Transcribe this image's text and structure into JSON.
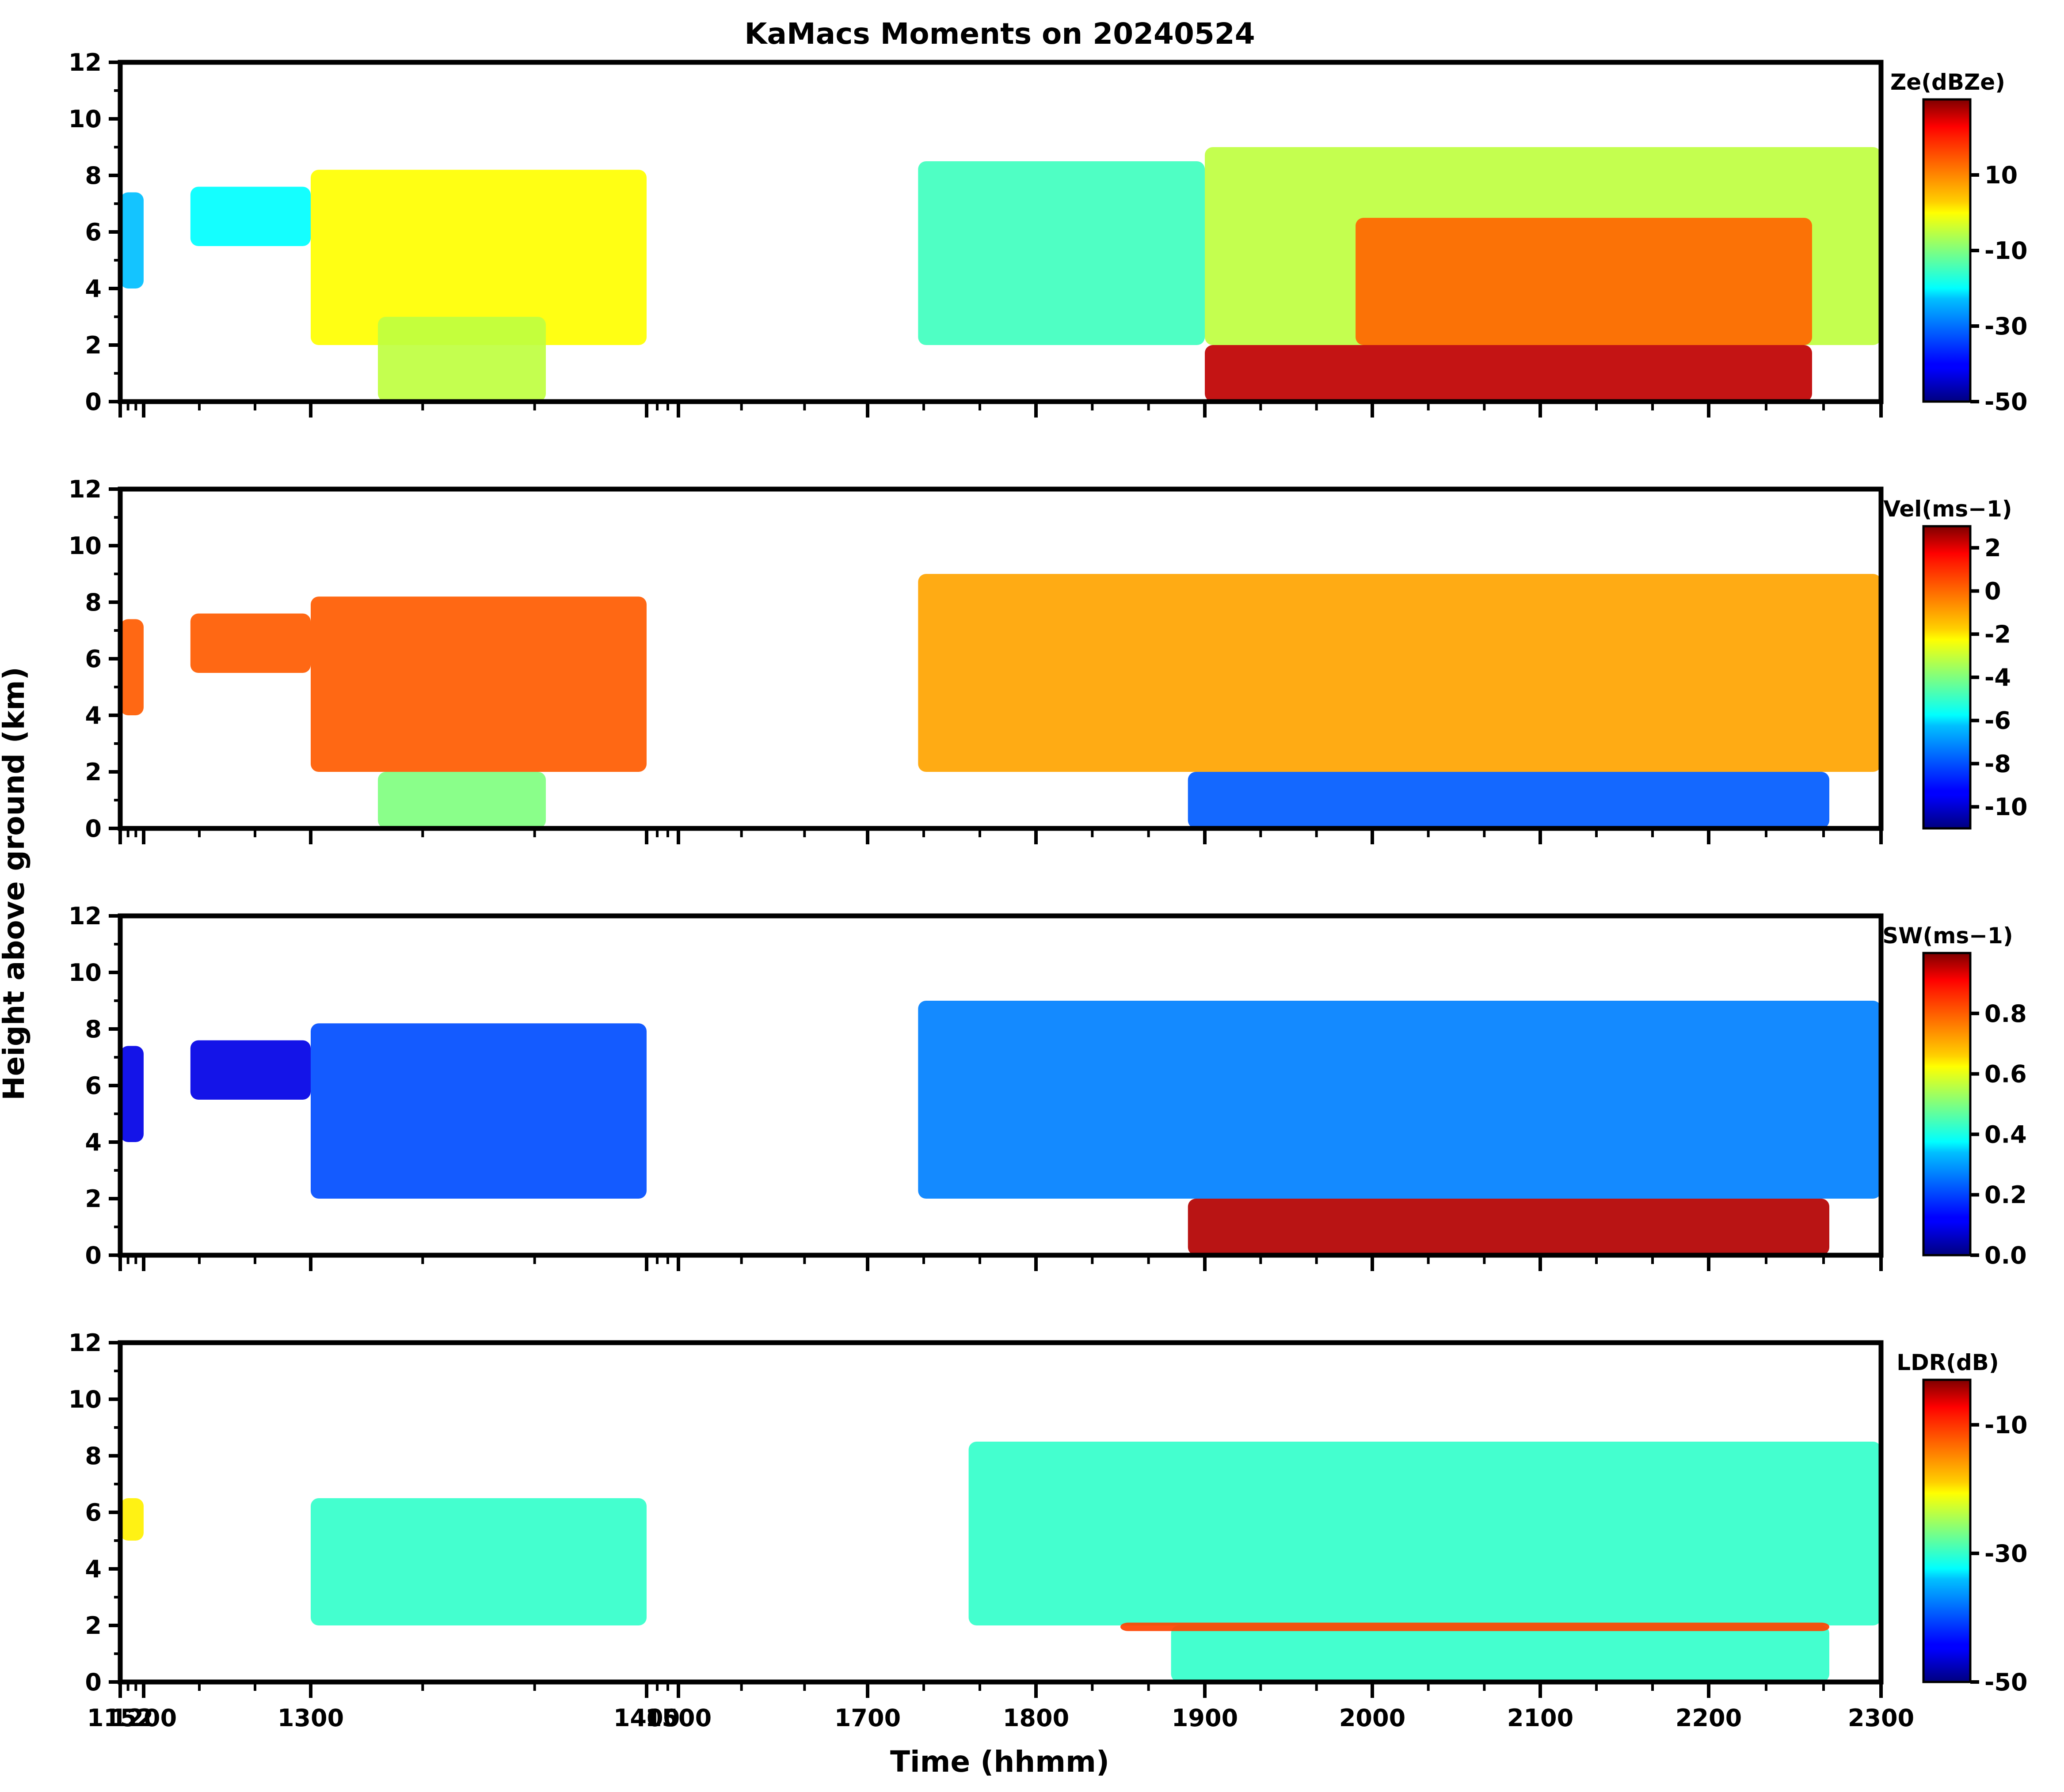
{
  "chart_data": {
    "type": "heatmap",
    "title": "KaMacs Moments on 20240524",
    "xlabel": "Time (hhmm)",
    "ylabel": "Height above ground (km)",
    "x_ticks": [
      "1152",
      "1200",
      "1300",
      "1400",
      "1500",
      "1700",
      "1800",
      "1900",
      "2000",
      "2100",
      "2200",
      "2300"
    ],
    "x_tick_positions_hhmm": [
      1152,
      1200,
      1300,
      1400,
      1500,
      1700,
      1800,
      1900,
      2000,
      2100,
      2200,
      2300
    ],
    "y_ticks": [
      "0",
      "2",
      "4",
      "6",
      "8",
      "10",
      "12"
    ],
    "ylim": [
      0,
      12
    ],
    "panels": [
      {
        "variable": "Ze",
        "colorbar_label": "Z<sub>e</sub>(dBZ<sub>e</sub>)",
        "colorbar_label_text": "Ze(dBZe)",
        "colorbar_ticks": [
          "-50",
          "-30",
          "-10",
          "10"
        ],
        "colorbar_tick_values": [
          -50,
          -30,
          -10,
          10
        ],
        "vmin": -50,
        "vmax": 30,
        "colormap": "jet",
        "echoes": [
          {
            "t0": 1152,
            "t1": 1200,
            "z0": 4.0,
            "z1": 7.4,
            "value": -25
          },
          {
            "t0": 1228,
            "t1": 1300,
            "z0": 5.5,
            "z1": 7.6,
            "value": -20
          },
          {
            "t0": 1300,
            "t1": 1400,
            "z0": 2.0,
            "z1": 8.2,
            "value": 0
          },
          {
            "t0": 1320,
            "t1": 1370,
            "z0": 0.0,
            "z1": 3.0,
            "value": -5
          },
          {
            "t0": 1730,
            "t1": 1900,
            "z0": 2.0,
            "z1": 8.5,
            "value": -15
          },
          {
            "t0": 1900,
            "t1": 2300,
            "z0": 2.0,
            "z1": 9.0,
            "value": -5
          },
          {
            "t0": 1990,
            "t1": 2260,
            "z0": 2.0,
            "z1": 6.5,
            "value": 12
          },
          {
            "t0": 1900,
            "t1": 2260,
            "z0": 0.0,
            "z1": 2.0,
            "value": 25
          }
        ]
      },
      {
        "variable": "Vel",
        "colorbar_label": "Vel(ms<sup>−1</sup>)",
        "colorbar_label_text": "Vel(ms−1)",
        "colorbar_ticks": [
          "-10",
          "-8",
          "-6",
          "-4",
          "-2",
          "0",
          "2"
        ],
        "colorbar_tick_values": [
          -10,
          -8,
          -6,
          -4,
          -2,
          0,
          2
        ],
        "vmin": -11,
        "vmax": 3,
        "colormap": "jet",
        "echoes": [
          {
            "t0": 1152,
            "t1": 1200,
            "z0": 4.0,
            "z1": 7.4,
            "value": 0
          },
          {
            "t0": 1228,
            "t1": 1300,
            "z0": 5.5,
            "z1": 7.6,
            "value": 0
          },
          {
            "t0": 1300,
            "t1": 1400,
            "z0": 2.0,
            "z1": 8.2,
            "value": 0
          },
          {
            "t0": 1320,
            "t1": 1370,
            "z0": 0.0,
            "z1": 2.0,
            "value": -4
          },
          {
            "t0": 1730,
            "t1": 2300,
            "z0": 2.0,
            "z1": 9.0,
            "value": -1
          },
          {
            "t0": 1890,
            "t1": 2270,
            "z0": 0.0,
            "z1": 2.0,
            "value": -8
          }
        ]
      },
      {
        "variable": "SW",
        "colorbar_label": "SW(ms<sup>−1</sup>)",
        "colorbar_label_text": "SW(ms−1)",
        "colorbar_ticks": [
          "0.0",
          "0.2",
          "0.4",
          "0.6",
          "0.8"
        ],
        "colorbar_tick_values": [
          0.0,
          0.2,
          0.4,
          0.6,
          0.8
        ],
        "vmin": 0.0,
        "vmax": 1.0,
        "colormap": "jet",
        "echoes": [
          {
            "t0": 1152,
            "t1": 1200,
            "z0": 4.0,
            "z1": 7.4,
            "value": 0.1
          },
          {
            "t0": 1228,
            "t1": 1300,
            "z0": 5.5,
            "z1": 7.6,
            "value": 0.1
          },
          {
            "t0": 1300,
            "t1": 1400,
            "z0": 2.0,
            "z1": 8.2,
            "value": 0.2
          },
          {
            "t0": 1730,
            "t1": 2300,
            "z0": 2.0,
            "z1": 9.0,
            "value": 0.25
          },
          {
            "t0": 1890,
            "t1": 2270,
            "z0": 0.0,
            "z1": 2.0,
            "value": 0.95
          }
        ]
      },
      {
        "variable": "LDR",
        "colorbar_label": "LDR(dB)",
        "colorbar_label_text": "LDR(dB)",
        "colorbar_ticks": [
          "-50",
          "-30",
          "-10"
        ],
        "colorbar_tick_values": [
          -50,
          -30,
          -10
        ],
        "vmin": -50,
        "vmax": -3,
        "colormap": "jet",
        "echoes": [
          {
            "t0": 1152,
            "t1": 1200,
            "z0": 5.0,
            "z1": 6.5,
            "value": -20
          },
          {
            "t0": 1300,
            "t1": 1400,
            "z0": 2.0,
            "z1": 6.5,
            "value": -30
          },
          {
            "t0": 1760,
            "t1": 2300,
            "z0": 2.0,
            "z1": 8.5,
            "value": -30
          },
          {
            "t0": 1880,
            "t1": 2270,
            "z0": 0.0,
            "z1": 2.0,
            "value": -30
          },
          {
            "t0": 1850,
            "t1": 2270,
            "z0": 1.8,
            "z1": 2.1,
            "value": -12
          }
        ]
      }
    ]
  }
}
